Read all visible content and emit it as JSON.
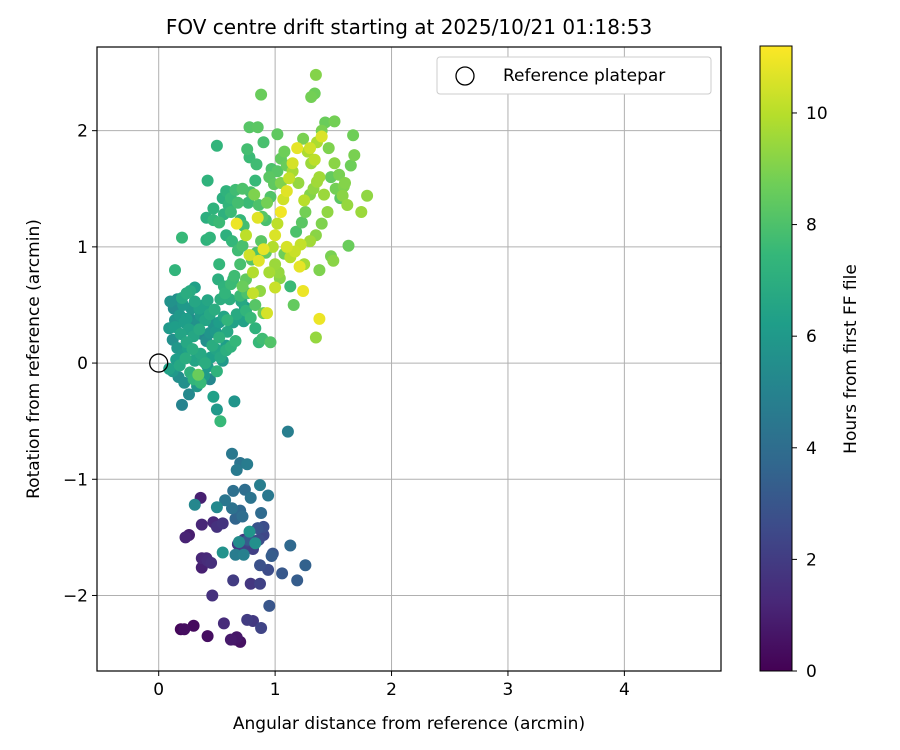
{
  "chart_data": {
    "type": "scatter",
    "title": "FOV centre drift starting at 2025/10/21 01:18:53",
    "xlabel": "Angular distance from reference (arcmin)",
    "ylabel": "Rotation from reference (arcmin)",
    "xlim": [
      -0.53,
      4.83
    ],
    "ylim": [
      -2.65,
      2.72
    ],
    "x_ticks": [
      0,
      1,
      2,
      3,
      4
    ],
    "x_tick_labels": [
      "0",
      "1",
      "2",
      "3",
      "4"
    ],
    "y_ticks": [
      -2,
      -1,
      0,
      1,
      2
    ],
    "y_tick_labels": [
      "−2",
      "−1",
      "0",
      "1",
      "2"
    ],
    "grid": true,
    "legend": {
      "position": "top-right",
      "entries": [
        {
          "label": "Reference platepar",
          "marker": "open-circle",
          "x": 0,
          "y": 0
        }
      ]
    },
    "colorbar": {
      "label": "Hours from first FF file",
      "colormap": "viridis",
      "range": [
        0,
        11.2
      ],
      "ticks": [
        0,
        2,
        4,
        6,
        8,
        10
      ],
      "tick_labels": [
        "0",
        "2",
        "4",
        "6",
        "8",
        "10"
      ]
    },
    "colormap_stops": [
      "#440154",
      "#482878",
      "#3e4989",
      "#31688e",
      "#26828e",
      "#1f9e89",
      "#35b779",
      "#6ece58",
      "#b5de2b",
      "#fde725"
    ],
    "points": [
      [
        0.19,
        -2.29,
        0.2
      ],
      [
        0.3,
        -2.26,
        0.3
      ],
      [
        0.42,
        -2.35,
        0.4
      ],
      [
        0.22,
        -2.29,
        0.4
      ],
      [
        0.66,
        -2.38,
        0.6
      ],
      [
        0.7,
        -2.4,
        0.5
      ],
      [
        0.62,
        -2.38,
        0.8
      ],
      [
        0.67,
        -2.36,
        0.7
      ],
      [
        0.56,
        -2.24,
        1.4
      ],
      [
        0.81,
        -2.22,
        1.9
      ],
      [
        0.76,
        -2.21,
        2.0
      ],
      [
        0.88,
        -2.28,
        2.3
      ],
      [
        0.46,
        -2.0,
        1.6
      ],
      [
        0.79,
        -1.9,
        1.8
      ],
      [
        0.87,
        -1.9,
        2.2
      ],
      [
        0.64,
        -1.87,
        2.0
      ],
      [
        0.95,
        -2.09,
        3.0
      ],
      [
        1.19,
        -1.87,
        3.3
      ],
      [
        1.26,
        -1.74,
        3.5
      ],
      [
        1.13,
        -1.57,
        3.8
      ],
      [
        1.06,
        -1.81,
        3.1
      ],
      [
        0.98,
        -1.64,
        3.0
      ],
      [
        0.94,
        -1.78,
        2.6
      ],
      [
        0.87,
        -1.74,
        2.8
      ],
      [
        0.37,
        -1.68,
        1.2
      ],
      [
        0.41,
        -1.68,
        1.3
      ],
      [
        0.45,
        -1.72,
        1.5
      ],
      [
        0.37,
        -1.76,
        1.0
      ],
      [
        0.42,
        -1.7,
        1.4
      ],
      [
        0.23,
        -1.5,
        1.1
      ],
      [
        0.26,
        -1.48,
        0.9
      ],
      [
        0.37,
        -1.39,
        1.2
      ],
      [
        0.47,
        -1.37,
        1.3
      ],
      [
        0.36,
        -1.16,
        1.0
      ],
      [
        0.5,
        -1.41,
        1.6
      ],
      [
        0.55,
        -1.38,
        1.7
      ],
      [
        0.68,
        -1.56,
        1.8
      ],
      [
        0.73,
        -1.52,
        1.9
      ],
      [
        0.73,
        -1.59,
        2.2
      ],
      [
        0.76,
        -1.53,
        2.4
      ],
      [
        0.81,
        -1.53,
        2.5
      ],
      [
        0.86,
        -1.52,
        2.6
      ],
      [
        0.9,
        -1.48,
        2.4
      ],
      [
        0.9,
        -1.41,
        2.7
      ],
      [
        0.85,
        -1.42,
        2.9
      ],
      [
        0.81,
        -1.6,
        2.1
      ],
      [
        0.77,
        -1.52,
        3.2
      ],
      [
        0.97,
        -1.66,
        3.3
      ],
      [
        0.66,
        -1.34,
        3.6
      ],
      [
        0.7,
        -1.27,
        3.8
      ],
      [
        0.72,
        -1.32,
        4.0
      ],
      [
        0.63,
        -1.25,
        4.2
      ],
      [
        0.57,
        -1.18,
        4.4
      ],
      [
        0.64,
        -1.1,
        4.1
      ],
      [
        0.74,
        -1.09,
        4.0
      ],
      [
        0.79,
        -1.16,
        4.3
      ],
      [
        0.88,
        -1.29,
        3.9
      ],
      [
        0.94,
        -1.14,
        4.5
      ],
      [
        0.55,
        -1.63,
        5.7
      ],
      [
        0.69,
        -1.54,
        5.4
      ],
      [
        0.67,
        -0.92,
        4.6
      ],
      [
        0.7,
        -0.86,
        4.3
      ],
      [
        0.63,
        -0.78,
        4.5
      ],
      [
        0.76,
        -0.87,
        4.7
      ],
      [
        0.87,
        -1.05,
        4.8
      ],
      [
        0.31,
        -1.22,
        5.2
      ],
      [
        0.5,
        -1.24,
        5.3
      ],
      [
        0.66,
        -1.65,
        4.7
      ],
      [
        0.73,
        -1.65,
        4.9
      ],
      [
        1.11,
        -0.59,
        4.8
      ],
      [
        0.83,
        -1.55,
        5.6
      ],
      [
        0.78,
        -1.45,
        5.8
      ],
      [
        0.44,
        -0.14,
        5.2
      ],
      [
        0.2,
        -0.36,
        5.0
      ],
      [
        0.17,
        -0.12,
        5.5
      ],
      [
        0.26,
        -0.27,
        5.3
      ],
      [
        0.22,
        -0.17,
        5.6
      ],
      [
        0.33,
        -0.2,
        5.9
      ],
      [
        0.39,
        -0.11,
        6.1
      ],
      [
        0.47,
        -0.29,
        6.3
      ],
      [
        0.5,
        -0.4,
        6.0
      ],
      [
        0.53,
        -0.5,
        7.5
      ],
      [
        0.65,
        -0.33,
        5.8
      ],
      [
        0.34,
        -0.1,
        8.6
      ],
      [
        0.1,
        0.53,
        5.7
      ],
      [
        0.13,
        0.47,
        5.4
      ],
      [
        0.16,
        0.55,
        5.6
      ],
      [
        0.21,
        0.5,
        6.0
      ],
      [
        0.24,
        0.38,
        6.2
      ],
      [
        0.27,
        0.62,
        6.8
      ],
      [
        0.31,
        0.65,
        6.3
      ],
      [
        0.28,
        0.47,
        5.9
      ],
      [
        0.36,
        0.41,
        6.1
      ],
      [
        0.39,
        0.5,
        6.4
      ],
      [
        0.42,
        0.54,
        6.6
      ],
      [
        0.46,
        0.35,
        5.8
      ],
      [
        0.49,
        0.27,
        6.0
      ],
      [
        0.52,
        0.35,
        6.2
      ],
      [
        0.56,
        0.4,
        6.5
      ],
      [
        0.59,
        0.27,
        6.7
      ],
      [
        0.64,
        0.35,
        6.4
      ],
      [
        0.67,
        0.42,
        6.8
      ],
      [
        0.61,
        0.55,
        7.0
      ],
      [
        0.56,
        0.66,
        7.2
      ],
      [
        0.51,
        0.72,
        7.0
      ],
      [
        0.64,
        0.72,
        7.4
      ],
      [
        0.7,
        0.58,
        7.6
      ],
      [
        0.75,
        0.45,
        7.3
      ],
      [
        0.79,
        0.39,
        7.5
      ],
      [
        0.83,
        0.3,
        7.2
      ],
      [
        0.86,
        0.18,
        7.5
      ],
      [
        0.89,
        0.21,
        7.7
      ],
      [
        0.73,
        0.36,
        6.4
      ],
      [
        0.74,
        0.48,
        6.2
      ],
      [
        0.71,
        0.53,
        6.7
      ],
      [
        0.09,
        0.3,
        6.0
      ],
      [
        0.14,
        0.31,
        6.2
      ],
      [
        0.19,
        0.25,
        6.5
      ],
      [
        0.24,
        0.18,
        6.7
      ],
      [
        0.29,
        0.12,
        6.9
      ],
      [
        0.33,
        0.06,
        6.4
      ],
      [
        0.38,
        0.02,
        6.6
      ],
      [
        0.42,
        -0.03,
        6.1
      ],
      [
        0.45,
        0.05,
        6.3
      ],
      [
        0.49,
        0.12,
        6.5
      ],
      [
        0.53,
        0.05,
        6.7
      ],
      [
        0.58,
        0.11,
        7.0
      ],
      [
        0.62,
        0.14,
        7.2
      ],
      [
        0.66,
        0.19,
        7.4
      ],
      [
        0.15,
        0.03,
        6.2
      ],
      [
        0.12,
        -0.07,
        6.0
      ],
      [
        0.09,
        -0.05,
        6.4
      ],
      [
        0.18,
        -0.02,
        6.7
      ],
      [
        0.23,
        0.04,
        6.9
      ],
      [
        0.27,
        -0.08,
        7.1
      ],
      [
        0.3,
        -0.14,
        7.3
      ],
      [
        0.36,
        -0.17,
        7.5
      ],
      [
        0.4,
        0.0,
        6.9
      ],
      [
        0.5,
        -0.07,
        7.2
      ],
      [
        0.55,
        0.02,
        6.0
      ],
      [
        0.58,
        0.15,
        6.2
      ],
      [
        0.14,
        0.8,
        7.3
      ],
      [
        0.52,
        0.85,
        7.4
      ],
      [
        0.65,
        0.75,
        7.7
      ],
      [
        0.7,
        0.85,
        7.9
      ],
      [
        0.76,
        0.6,
        8.0
      ],
      [
        0.83,
        0.5,
        8.2
      ],
      [
        0.9,
        0.43,
        8.6
      ],
      [
        0.96,
        0.18,
        8.1
      ],
      [
        0.87,
        0.62,
        9.3
      ],
      [
        0.81,
        0.6,
        10.2
      ],
      [
        0.93,
        0.43,
        10.5
      ],
      [
        0.2,
        1.08,
        7.5
      ],
      [
        0.41,
        1.06,
        7.2
      ],
      [
        0.41,
        1.25,
        7.0
      ],
      [
        0.47,
        1.23,
        7.4
      ],
      [
        0.47,
        1.33,
        7.2
      ],
      [
        0.52,
        1.21,
        7.6
      ],
      [
        0.56,
        1.28,
        7.1
      ],
      [
        0.6,
        1.36,
        7.3
      ],
      [
        0.62,
        1.42,
        7.5
      ],
      [
        0.66,
        1.49,
        7.7
      ],
      [
        0.7,
        1.23,
        7.4
      ],
      [
        0.73,
        1.18,
        7.8
      ],
      [
        0.77,
        1.38,
        7.6
      ],
      [
        0.79,
        1.47,
        7.9
      ],
      [
        0.83,
        1.57,
        7.5
      ],
      [
        0.86,
        1.36,
        8.0
      ],
      [
        0.89,
        1.26,
        8.2
      ],
      [
        0.92,
        1.23,
        7.9
      ],
      [
        0.96,
        1.43,
        8.1
      ],
      [
        0.99,
        1.54,
        8.4
      ],
      [
        1.02,
        1.65,
        8.2
      ],
      [
        1.05,
        1.76,
        8.5
      ],
      [
        1.08,
        1.82,
        8.7
      ],
      [
        0.42,
        1.57,
        7.2
      ],
      [
        0.5,
        1.87,
        7.3
      ],
      [
        0.78,
        1.77,
        7.6
      ],
      [
        0.76,
        1.84,
        7.8
      ],
      [
        0.84,
        1.71,
        7.7
      ],
      [
        0.9,
        1.9,
        7.9
      ],
      [
        0.97,
        1.67,
        8.0
      ],
      [
        1.02,
        1.97,
        8.4
      ],
      [
        0.85,
        2.03,
        8.3
      ],
      [
        0.78,
        2.03,
        8.2
      ],
      [
        0.88,
        2.31,
        8.6
      ],
      [
        1.31,
        2.29,
        8.8
      ],
      [
        1.34,
        2.32,
        8.7
      ],
      [
        1.35,
        2.48,
        9.1
      ],
      [
        1.4,
        2.0,
        8.9
      ],
      [
        1.43,
        2.07,
        8.6
      ],
      [
        1.51,
        2.08,
        8.8
      ],
      [
        1.46,
        1.85,
        9.0
      ],
      [
        1.51,
        1.72,
        9.2
      ],
      [
        1.55,
        1.62,
        8.9
      ],
      [
        1.59,
        1.52,
        9.0
      ],
      [
        1.58,
        1.44,
        9.2
      ],
      [
        1.62,
        1.36,
        9.4
      ],
      [
        1.67,
        1.96,
        8.7
      ],
      [
        1.68,
        1.79,
        8.9
      ],
      [
        1.74,
        1.3,
        9.5
      ],
      [
        1.79,
        1.44,
        9.3
      ],
      [
        1.63,
        1.01,
        8.6
      ],
      [
        1.48,
        0.92,
        8.9
      ],
      [
        1.5,
        0.88,
        9.2
      ],
      [
        1.38,
        0.8,
        9.0
      ],
      [
        1.35,
        0.22,
        9.4
      ],
      [
        1.38,
        0.38,
        10.9
      ],
      [
        1.13,
        0.66,
        7.6
      ],
      [
        1.16,
        0.5,
        8.5
      ],
      [
        1.04,
        0.73,
        9.2
      ],
      [
        1.03,
        0.78,
        9.4
      ],
      [
        1.08,
        0.94,
        8.7
      ],
      [
        1.13,
        0.91,
        10.0
      ],
      [
        1.17,
        0.96,
        10.3
      ],
      [
        1.21,
        0.83,
        10.8
      ],
      [
        1.24,
        0.62,
        10.9
      ],
      [
        1.18,
        1.13,
        8.0
      ],
      [
        1.23,
        1.21,
        8.3
      ],
      [
        1.26,
        1.3,
        8.8
      ],
      [
        1.3,
        1.45,
        9.1
      ],
      [
        1.33,
        1.5,
        9.3
      ],
      [
        1.36,
        1.56,
        9.6
      ],
      [
        1.31,
        1.72,
        9.5
      ],
      [
        1.28,
        1.82,
        9.8
      ],
      [
        1.24,
        1.93,
        8.9
      ],
      [
        1.19,
        1.85,
        10.8
      ],
      [
        1.15,
        1.72,
        10.5
      ],
      [
        1.12,
        1.59,
        10.2
      ],
      [
        1.1,
        1.48,
        10.7
      ],
      [
        1.07,
        1.41,
        10.4
      ],
      [
        1.05,
        1.3,
        11.0
      ],
      [
        1.02,
        1.2,
        10.1
      ],
      [
        1.0,
        1.1,
        10.6
      ],
      [
        0.98,
        1.0,
        9.9
      ],
      [
        1.15,
        1.65,
        9.7
      ],
      [
        1.2,
        1.55,
        9.4
      ],
      [
        1.25,
        1.4,
        10.0
      ],
      [
        1.3,
        1.05,
        9.6
      ],
      [
        1.35,
        1.1,
        9.2
      ],
      [
        1.4,
        1.2,
        9.0
      ],
      [
        1.45,
        1.3,
        9.3
      ],
      [
        1.42,
        1.45,
        9.5
      ],
      [
        1.38,
        1.6,
        9.6
      ],
      [
        1.34,
        1.75,
        10.1
      ],
      [
        1.3,
        1.85,
        10.4
      ],
      [
        1.36,
        1.9,
        9.8
      ],
      [
        1.4,
        1.95,
        10.6
      ],
      [
        1.25,
        0.85,
        9.7
      ],
      [
        1.22,
        1.02,
        10.2
      ],
      [
        1.1,
        1.0,
        10.5
      ],
      [
        1.0,
        0.65,
        10.3
      ],
      [
        0.85,
        1.25,
        10.7
      ],
      [
        0.9,
        0.98,
        10.8
      ],
      [
        0.75,
        1.1,
        10.1
      ],
      [
        0.67,
        1.2,
        10.9
      ],
      [
        1.05,
        1.55,
        9.0
      ],
      [
        1.1,
        1.7,
        8.6
      ],
      [
        0.95,
        1.6,
        8.3
      ],
      [
        0.93,
        1.38,
        8.8
      ],
      [
        0.82,
        1.45,
        9.0
      ],
      [
        1.48,
        1.6,
        8.5
      ],
      [
        1.52,
        1.5,
        8.8
      ],
      [
        1.56,
        1.42,
        8.3
      ],
      [
        1.6,
        1.55,
        9.1
      ],
      [
        1.65,
        1.7,
        8.7
      ],
      [
        0.55,
        1.42,
        7.0
      ],
      [
        0.58,
        1.48,
        7.2
      ],
      [
        0.62,
        1.3,
        7.6
      ],
      [
        0.68,
        1.38,
        7.8
      ],
      [
        0.72,
        1.5,
        8.0
      ],
      [
        0.44,
        1.08,
        7.3
      ],
      [
        0.58,
        1.1,
        7.1
      ],
      [
        0.63,
        1.05,
        7.4
      ],
      [
        0.68,
        0.97,
        7.7
      ],
      [
        0.72,
        1.01,
        7.9
      ],
      [
        0.8,
        0.89,
        8.2
      ],
      [
        0.84,
        0.95,
        8.0
      ],
      [
        0.88,
        1.05,
        8.3
      ],
      [
        0.92,
        0.95,
        8.5
      ],
      [
        0.81,
        0.78,
        9.9
      ],
      [
        0.86,
        0.88,
        10.7
      ],
      [
        0.78,
        0.93,
        10.4
      ],
      [
        0.95,
        0.78,
        9.7
      ],
      [
        1.0,
        0.85,
        9.5
      ],
      [
        0.72,
        0.66,
        8.6
      ],
      [
        0.75,
        0.72,
        8.4
      ],
      [
        0.62,
        0.68,
        7.6
      ],
      [
        0.57,
        0.6,
        7.3
      ],
      [
        0.48,
        0.46,
        6.9
      ],
      [
        0.44,
        0.42,
        6.7
      ],
      [
        0.4,
        0.37,
        6.5
      ],
      [
        0.35,
        0.29,
        6.8
      ],
      [
        0.3,
        0.23,
        6.6
      ],
      [
        0.26,
        0.29,
        6.4
      ],
      [
        0.22,
        0.35,
        6.2
      ],
      [
        0.18,
        0.41,
        6.0
      ],
      [
        0.14,
        0.37,
        5.8
      ],
      [
        0.12,
        0.2,
        5.6
      ],
      [
        0.16,
        0.13,
        5.9
      ],
      [
        0.21,
        0.08,
        6.1
      ],
      [
        0.25,
        0.13,
        6.3
      ],
      [
        0.31,
        0.02,
        6.5
      ],
      [
        0.36,
        0.08,
        6.7
      ],
      [
        0.46,
        0.15,
        6.9
      ],
      [
        0.52,
        0.22,
        7.1
      ],
      [
        0.59,
        0.37,
        7.3
      ],
      [
        0.2,
        0.56,
        6.7
      ],
      [
        0.24,
        0.6,
        6.9
      ],
      [
        0.31,
        0.53,
        6.6
      ],
      [
        0.35,
        0.47,
        6.4
      ],
      [
        0.53,
        0.55,
        7.0
      ],
      [
        0.3,
        0.31,
        5.4
      ],
      [
        0.27,
        0.38,
        5.5
      ],
      [
        0.34,
        0.35,
        5.7
      ],
      [
        0.37,
        0.25,
        5.3
      ],
      [
        0.41,
        0.19,
        5.6
      ],
      [
        0.44,
        0.26,
        5.8
      ]
    ]
  }
}
